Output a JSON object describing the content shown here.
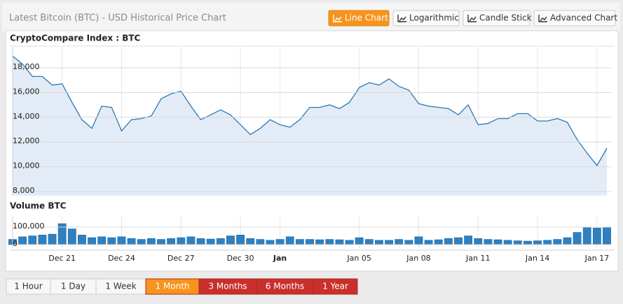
{
  "header": {
    "title": "Latest Bitcoin (BTC) - USD Historical Price Chart",
    "chart_modes": [
      "Line Chart",
      "Logarithmic",
      "Candle Stick",
      "Advanced Chart"
    ]
  },
  "chart_data": [
    {
      "type": "line",
      "title": "CryptoCompare Index : BTC",
      "color": "#2b78b6",
      "fill": "#e3ecf6",
      "values": [
        18950,
        18300,
        17300,
        17300,
        16600,
        16700,
        15200,
        13800,
        13100,
        14900,
        14800,
        12900,
        13800,
        13900,
        14100,
        15500,
        15900,
        16100,
        14900,
        13800,
        14200,
        14600,
        14200,
        13400,
        12600,
        13100,
        13800,
        13400,
        13200,
        13800,
        14800,
        14800,
        15000,
        14700,
        15200,
        16400,
        16800,
        16600,
        17100,
        16500,
        16200,
        15100,
        14900,
        14800,
        14700,
        14200,
        15000,
        13400,
        13500,
        13900,
        13900,
        14300,
        14300,
        13700,
        13700,
        13900,
        13600,
        12200,
        11100,
        10100,
        11500
      ],
      "ylim": [
        7660,
        19640
      ],
      "yticks": [
        {
          "value": 8000,
          "label": "8,000"
        },
        {
          "value": 10000,
          "label": "10,000"
        },
        {
          "value": 12000,
          "label": "12,000"
        },
        {
          "value": 14000,
          "label": "14,000"
        },
        {
          "value": 16000,
          "label": "16,000"
        },
        {
          "value": 18000,
          "label": "18,000"
        }
      ],
      "grid": true
    },
    {
      "type": "bar",
      "title": "Volume BTC",
      "color": "#2f80c0",
      "categories": [
        null,
        null,
        null,
        null,
        null,
        "Dec 21",
        null,
        null,
        null,
        null,
        null,
        "Dec 24",
        null,
        null,
        null,
        null,
        null,
        "Dec 27",
        null,
        null,
        null,
        null,
        null,
        "Dec 30",
        null,
        null,
        null,
        "Jan",
        null,
        null,
        null,
        null,
        null,
        null,
        null,
        "Jan 05",
        null,
        null,
        null,
        null,
        null,
        "Jan 08",
        null,
        null,
        null,
        null,
        null,
        "Jan 11",
        null,
        null,
        null,
        null,
        null,
        "Jan 14",
        null,
        null,
        null,
        null,
        null,
        "Jan 17",
        null
      ],
      "values": [
        30000,
        45000,
        50000,
        55000,
        60000,
        120000,
        90000,
        55000,
        40000,
        45000,
        40000,
        45000,
        35000,
        30000,
        35000,
        30000,
        35000,
        40000,
        45000,
        35000,
        32000,
        35000,
        50000,
        55000,
        35000,
        30000,
        25000,
        30000,
        45000,
        30000,
        30000,
        28000,
        30000,
        28000,
        25000,
        40000,
        30000,
        25000,
        25000,
        30000,
        25000,
        45000,
        25000,
        28000,
        35000,
        40000,
        50000,
        35000,
        30000,
        28000,
        25000,
        22000,
        20000,
        22000,
        25000,
        30000,
        40000,
        70000,
        100000,
        95000,
        100000
      ],
      "ylim": [
        -20000,
        164000
      ],
      "yticks": [
        0,
        {
          "value": 100000,
          "label": "100,000"
        }
      ],
      "grid": true
    }
  ],
  "ranges": [
    "1 Hour",
    "1 Day",
    "1 Week",
    "1 Month",
    "3 Months",
    "6 Months",
    "1 Year"
  ]
}
